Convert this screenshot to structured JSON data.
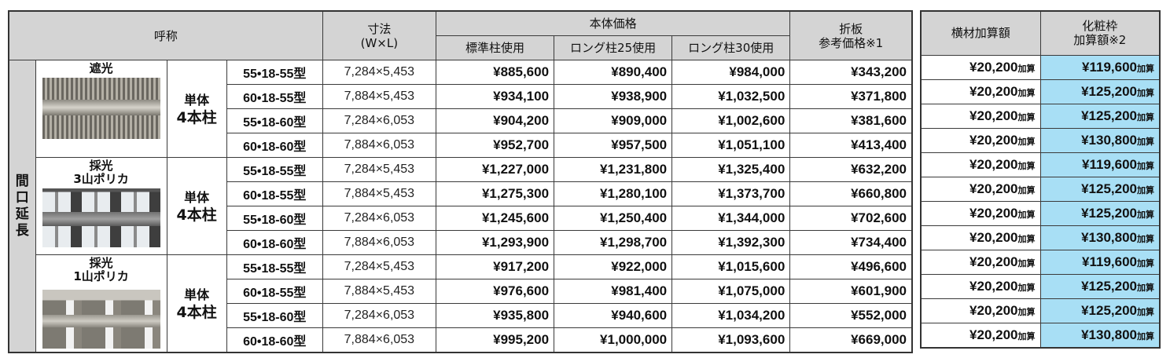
{
  "header": {
    "name": "呼称",
    "size_line1": "寸法",
    "size_line2": "(W×L)",
    "body_price": "本体価格",
    "std_post": "標準柱使用",
    "long25": "ロング柱25使用",
    "long30": "ロング柱30使用",
    "orita_line1": "折板",
    "orita_line2": "参考価格※1",
    "yokozai": "横材加算額",
    "kesho_line1": "化粧枠",
    "kesho_line2": "加算額※2"
  },
  "side_label": "間口延長",
  "add_suffix": "加算",
  "colors": {
    "header_bg": "#d4d4d4",
    "highlight": "#a8dff5"
  },
  "groups": [
    {
      "name_line1": "遮光",
      "name_line2": "",
      "image": "shading-roof-photo",
      "type_line1": "単体",
      "type_line2": "4本柱",
      "rows": [
        {
          "model": "55•18-55型",
          "size": "7,284×5,453",
          "std": "¥885,600",
          "l25": "¥890,400",
          "l30": "¥984,000",
          "orita": "¥343,200",
          "yoko": "¥20,200",
          "kesho": "¥119,600"
        },
        {
          "model": "60•18-55型",
          "size": "7,884×5,453",
          "std": "¥934,100",
          "l25": "¥938,900",
          "l30": "¥1,032,500",
          "orita": "¥371,800",
          "yoko": "¥20,200",
          "kesho": "¥125,200"
        },
        {
          "model": "55•18-60型",
          "size": "7,284×6,053",
          "std": "¥904,200",
          "l25": "¥909,000",
          "l30": "¥1,002,600",
          "orita": "¥381,600",
          "yoko": "¥20,200",
          "kesho": "¥125,200"
        },
        {
          "model": "60•18-60型",
          "size": "7,884×6,053",
          "std": "¥952,700",
          "l25": "¥957,500",
          "l30": "¥1,051,100",
          "orita": "¥413,400",
          "yoko": "¥20,200",
          "kesho": "¥130,800"
        }
      ]
    },
    {
      "name_line1": "採光",
      "name_line2": "3山ポリカ",
      "image": "daylight-3-ridge-polycarbonate-photo",
      "type_line1": "単体",
      "type_line2": "4本柱",
      "rows": [
        {
          "model": "55•18-55型",
          "size": "7,284×5,453",
          "std": "¥1,227,000",
          "l25": "¥1,231,800",
          "l30": "¥1,325,400",
          "orita": "¥632,200",
          "yoko": "¥20,200",
          "kesho": "¥119,600"
        },
        {
          "model": "60•18-55型",
          "size": "7,884×5,453",
          "std": "¥1,275,300",
          "l25": "¥1,280,100",
          "l30": "¥1,373,700",
          "orita": "¥660,800",
          "yoko": "¥20,200",
          "kesho": "¥125,200"
        },
        {
          "model": "55•18-60型",
          "size": "7,284×6,053",
          "std": "¥1,245,600",
          "l25": "¥1,250,400",
          "l30": "¥1,344,000",
          "orita": "¥702,600",
          "yoko": "¥20,200",
          "kesho": "¥125,200"
        },
        {
          "model": "60•18-60型",
          "size": "7,884×6,053",
          "std": "¥1,293,900",
          "l25": "¥1,298,700",
          "l30": "¥1,392,300",
          "orita": "¥734,400",
          "yoko": "¥20,200",
          "kesho": "¥130,800"
        }
      ]
    },
    {
      "name_line1": "採光",
      "name_line2": "1山ポリカ",
      "image": "daylight-1-ridge-polycarbonate-photo",
      "type_line1": "単体",
      "type_line2": "4本柱",
      "rows": [
        {
          "model": "55•18-55型",
          "size": "7,284×5,453",
          "std": "¥917,200",
          "l25": "¥922,000",
          "l30": "¥1,015,600",
          "orita": "¥496,600",
          "yoko": "¥20,200",
          "kesho": "¥119,600"
        },
        {
          "model": "60•18-55型",
          "size": "7,884×5,453",
          "std": "¥976,600",
          "l25": "¥981,400",
          "l30": "¥1,075,000",
          "orita": "¥601,900",
          "yoko": "¥20,200",
          "kesho": "¥125,200"
        },
        {
          "model": "55•18-60型",
          "size": "7,284×6,053",
          "std": "¥935,800",
          "l25": "¥940,600",
          "l30": "¥1,034,200",
          "orita": "¥552,000",
          "yoko": "¥20,200",
          "kesho": "¥125,200"
        },
        {
          "model": "60•18-60型",
          "size": "7,884×6,053",
          "std": "¥995,200",
          "l25": "¥1,000,000",
          "l30": "¥1,093,600",
          "orita": "¥669,000",
          "yoko": "¥20,200",
          "kesho": "¥130,800"
        }
      ]
    }
  ]
}
